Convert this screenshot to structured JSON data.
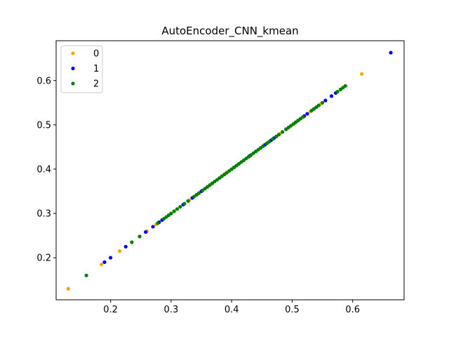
{
  "chart_data": {
    "type": "scatter",
    "title": "AutoEncoder_CNN_kmean",
    "xlabel": "",
    "ylabel": "",
    "xlim": [
      0.11,
      0.685
    ],
    "ylim": [
      0.105,
      0.69
    ],
    "x_ticks": [
      0.2,
      0.3,
      0.4,
      0.5,
      0.6
    ],
    "y_ticks": [
      0.2,
      0.3,
      0.4,
      0.5,
      0.6
    ],
    "x_tick_labels": [
      "0.2",
      "0.3",
      "0.4",
      "0.5",
      "0.6"
    ],
    "y_tick_labels": [
      "0.2",
      "0.3",
      "0.4",
      "0.5",
      "0.6"
    ],
    "grid": false,
    "legend_position": "top-left",
    "series": [
      {
        "name": "0",
        "color": "#ffa500",
        "points": [
          [
            0.13,
            0.13
          ],
          [
            0.185,
            0.185
          ],
          [
            0.215,
            0.215
          ],
          [
            0.248,
            0.248
          ],
          [
            0.26,
            0.26
          ],
          [
            0.275,
            0.275
          ],
          [
            0.3,
            0.3
          ],
          [
            0.33,
            0.33
          ],
          [
            0.36,
            0.36
          ],
          [
            0.39,
            0.39
          ],
          [
            0.42,
            0.42
          ],
          [
            0.44,
            0.44
          ],
          [
            0.46,
            0.46
          ],
          [
            0.48,
            0.48
          ],
          [
            0.505,
            0.505
          ],
          [
            0.53,
            0.53
          ],
          [
            0.548,
            0.548
          ],
          [
            0.615,
            0.615
          ]
        ]
      },
      {
        "name": "1",
        "color": "#0000ff",
        "points": [
          [
            0.19,
            0.19
          ],
          [
            0.2,
            0.2
          ],
          [
            0.225,
            0.225
          ],
          [
            0.258,
            0.258
          ],
          [
            0.27,
            0.27
          ],
          [
            0.28,
            0.28
          ],
          [
            0.285,
            0.285
          ],
          [
            0.32,
            0.32
          ],
          [
            0.335,
            0.335
          ],
          [
            0.35,
            0.35
          ],
          [
            0.4,
            0.4
          ],
          [
            0.43,
            0.43
          ],
          [
            0.455,
            0.455
          ],
          [
            0.465,
            0.465
          ],
          [
            0.47,
            0.47
          ],
          [
            0.49,
            0.49
          ],
          [
            0.51,
            0.51
          ],
          [
            0.52,
            0.52
          ],
          [
            0.525,
            0.525
          ],
          [
            0.555,
            0.555
          ],
          [
            0.565,
            0.565
          ],
          [
            0.572,
            0.572
          ],
          [
            0.663,
            0.663
          ]
        ]
      },
      {
        "name": "2",
        "color": "#008000",
        "points": [
          [
            0.16,
            0.16
          ],
          [
            0.235,
            0.235
          ],
          [
            0.248,
            0.248
          ],
          [
            0.278,
            0.278
          ],
          [
            0.288,
            0.288
          ],
          [
            0.292,
            0.292
          ],
          [
            0.296,
            0.296
          ],
          [
            0.3,
            0.3
          ],
          [
            0.305,
            0.305
          ],
          [
            0.31,
            0.31
          ],
          [
            0.315,
            0.315
          ],
          [
            0.322,
            0.322
          ],
          [
            0.328,
            0.328
          ],
          [
            0.338,
            0.338
          ],
          [
            0.342,
            0.342
          ],
          [
            0.346,
            0.346
          ],
          [
            0.352,
            0.352
          ],
          [
            0.356,
            0.356
          ],
          [
            0.36,
            0.36
          ],
          [
            0.364,
            0.364
          ],
          [
            0.368,
            0.368
          ],
          [
            0.372,
            0.372
          ],
          [
            0.376,
            0.376
          ],
          [
            0.38,
            0.38
          ],
          [
            0.384,
            0.384
          ],
          [
            0.388,
            0.388
          ],
          [
            0.392,
            0.392
          ],
          [
            0.396,
            0.396
          ],
          [
            0.4,
            0.4
          ],
          [
            0.404,
            0.404
          ],
          [
            0.408,
            0.408
          ],
          [
            0.412,
            0.412
          ],
          [
            0.416,
            0.416
          ],
          [
            0.42,
            0.42
          ],
          [
            0.424,
            0.424
          ],
          [
            0.428,
            0.428
          ],
          [
            0.432,
            0.432
          ],
          [
            0.436,
            0.436
          ],
          [
            0.44,
            0.44
          ],
          [
            0.444,
            0.444
          ],
          [
            0.448,
            0.448
          ],
          [
            0.452,
            0.452
          ],
          [
            0.458,
            0.458
          ],
          [
            0.462,
            0.462
          ],
          [
            0.468,
            0.468
          ],
          [
            0.474,
            0.474
          ],
          [
            0.478,
            0.478
          ],
          [
            0.484,
            0.484
          ],
          [
            0.49,
            0.49
          ],
          [
            0.494,
            0.494
          ],
          [
            0.498,
            0.498
          ],
          [
            0.502,
            0.502
          ],
          [
            0.506,
            0.506
          ],
          [
            0.51,
            0.51
          ],
          [
            0.514,
            0.514
          ],
          [
            0.518,
            0.518
          ],
          [
            0.532,
            0.532
          ],
          [
            0.536,
            0.536
          ],
          [
            0.54,
            0.54
          ],
          [
            0.544,
            0.544
          ],
          [
            0.55,
            0.55
          ],
          [
            0.575,
            0.575
          ],
          [
            0.58,
            0.58
          ],
          [
            0.584,
            0.584
          ],
          [
            0.588,
            0.588
          ]
        ]
      }
    ]
  }
}
